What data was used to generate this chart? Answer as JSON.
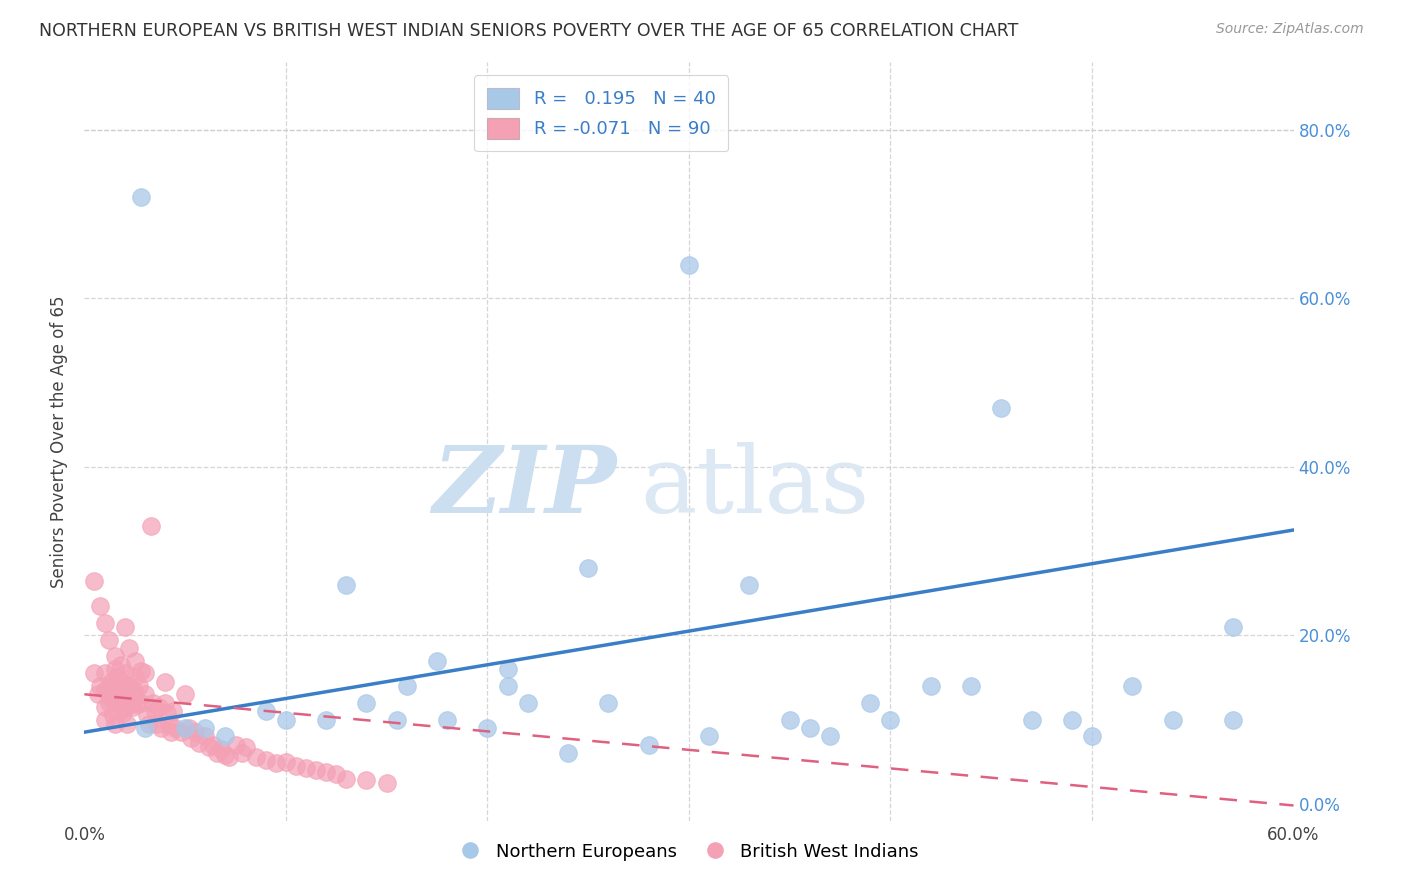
{
  "title": "NORTHERN EUROPEAN VS BRITISH WEST INDIAN SENIORS POVERTY OVER THE AGE OF 65 CORRELATION CHART",
  "source": "Source: ZipAtlas.com",
  "ylabel": "Seniors Poverty Over the Age of 65",
  "xlim": [
    0.0,
    0.6
  ],
  "ylim": [
    -0.02,
    0.88
  ],
  "background_color": "#ffffff",
  "grid_color": "#cccccc",
  "blue_color": "#a8c8e8",
  "pink_color": "#f4a0b5",
  "blue_line_color": "#3a7ec8",
  "pink_line_color": "#e06080",
  "R_blue": 0.195,
  "N_blue": 40,
  "R_pink": -0.071,
  "N_pink": 90,
  "blue_intercept": 0.085,
  "blue_slope": 0.4,
  "pink_intercept": 0.13,
  "pink_slope": -0.22,
  "blue_x": [
    0.028,
    0.13,
    0.155,
    0.175,
    0.21,
    0.21,
    0.25,
    0.26,
    0.3,
    0.33,
    0.35,
    0.37,
    0.39,
    0.4,
    0.42,
    0.44,
    0.455,
    0.47,
    0.49,
    0.5,
    0.52,
    0.54,
    0.57,
    0.57,
    0.03,
    0.05,
    0.06,
    0.07,
    0.09,
    0.1,
    0.12,
    0.14,
    0.16,
    0.18,
    0.2,
    0.22,
    0.24,
    0.28,
    0.31,
    0.36
  ],
  "blue_y": [
    0.72,
    0.26,
    0.1,
    0.17,
    0.16,
    0.14,
    0.28,
    0.12,
    0.64,
    0.26,
    0.1,
    0.08,
    0.12,
    0.1,
    0.14,
    0.14,
    0.47,
    0.1,
    0.1,
    0.08,
    0.14,
    0.1,
    0.21,
    0.1,
    0.09,
    0.09,
    0.09,
    0.08,
    0.11,
    0.1,
    0.1,
    0.12,
    0.14,
    0.1,
    0.09,
    0.12,
    0.06,
    0.07,
    0.08,
    0.09
  ],
  "pink_x": [
    0.005,
    0.007,
    0.008,
    0.01,
    0.01,
    0.01,
    0.01,
    0.012,
    0.012,
    0.013,
    0.013,
    0.014,
    0.015,
    0.015,
    0.015,
    0.015,
    0.016,
    0.017,
    0.017,
    0.018,
    0.018,
    0.019,
    0.02,
    0.02,
    0.02,
    0.021,
    0.022,
    0.023,
    0.024,
    0.024,
    0.025,
    0.025,
    0.026,
    0.027,
    0.028,
    0.03,
    0.03,
    0.031,
    0.032,
    0.033,
    0.034,
    0.035,
    0.036,
    0.037,
    0.038,
    0.04,
    0.04,
    0.041,
    0.042,
    0.043,
    0.044,
    0.045,
    0.048,
    0.05,
    0.052,
    0.053,
    0.055,
    0.057,
    0.06,
    0.062,
    0.064,
    0.066,
    0.068,
    0.07,
    0.072,
    0.075,
    0.078,
    0.08,
    0.085,
    0.09,
    0.095,
    0.1,
    0.105,
    0.11,
    0.115,
    0.12,
    0.125,
    0.13,
    0.14,
    0.15,
    0.005,
    0.008,
    0.01,
    0.012,
    0.015,
    0.018,
    0.02,
    0.022,
    0.025,
    0.028
  ],
  "pink_y": [
    0.155,
    0.13,
    0.14,
    0.155,
    0.135,
    0.115,
    0.1,
    0.14,
    0.12,
    0.145,
    0.125,
    0.105,
    0.16,
    0.14,
    0.12,
    0.095,
    0.15,
    0.13,
    0.11,
    0.145,
    0.125,
    0.108,
    0.155,
    0.135,
    0.115,
    0.095,
    0.14,
    0.118,
    0.135,
    0.115,
    0.15,
    0.13,
    0.118,
    0.14,
    0.12,
    0.155,
    0.13,
    0.105,
    0.095,
    0.33,
    0.12,
    0.11,
    0.095,
    0.115,
    0.09,
    0.145,
    0.12,
    0.108,
    0.095,
    0.085,
    0.11,
    0.09,
    0.085,
    0.13,
    0.09,
    0.078,
    0.085,
    0.072,
    0.08,
    0.068,
    0.07,
    0.06,
    0.065,
    0.058,
    0.055,
    0.07,
    0.06,
    0.068,
    0.055,
    0.052,
    0.048,
    0.05,
    0.045,
    0.042,
    0.04,
    0.038,
    0.035,
    0.03,
    0.028,
    0.025,
    0.265,
    0.235,
    0.215,
    0.195,
    0.175,
    0.165,
    0.21,
    0.185,
    0.17,
    0.158
  ],
  "watermark_zip": "ZIP",
  "watermark_atlas": "atlas",
  "figsize": [
    14.06,
    8.92
  ],
  "dpi": 100
}
